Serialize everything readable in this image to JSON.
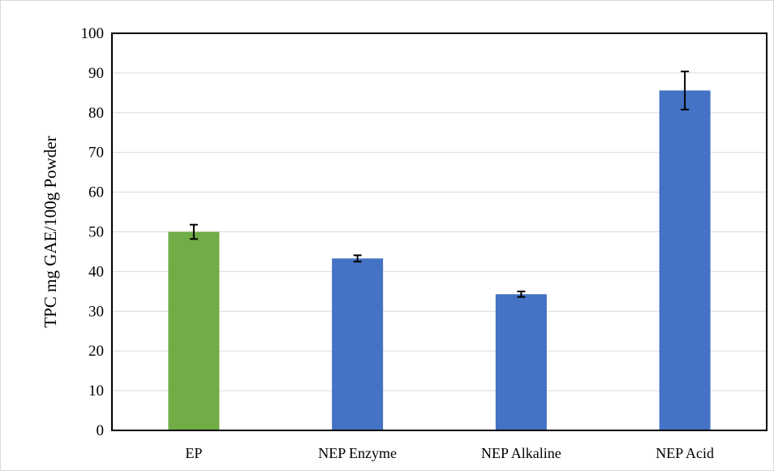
{
  "chart_data": {
    "type": "bar",
    "title": "",
    "xlabel": "",
    "ylabel": "TPC mg GAE/100g Powder",
    "categories": [
      "EP",
      "NEP Enzyme",
      "NEP Alkaline",
      "NEP Acid"
    ],
    "values": [
      50.0,
      43.3,
      34.3,
      85.6
    ],
    "errors": [
      1.8,
      0.8,
      0.7,
      4.8
    ],
    "bar_colors": [
      "#70ad47",
      "#4472c4",
      "#4472c4",
      "#4472c4"
    ],
    "ylim": [
      0,
      100
    ],
    "yticks": [
      0,
      10,
      20,
      30,
      40,
      50,
      60,
      70,
      80,
      90,
      100
    ],
    "grid": true,
    "legend": "none"
  }
}
